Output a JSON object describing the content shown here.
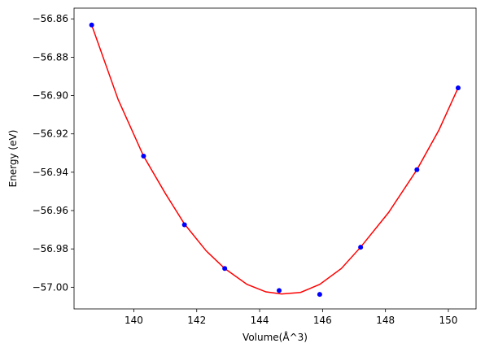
{
  "chart_data": {
    "type": "scatter",
    "xlabel": "Volume(Å^3)",
    "ylabel": "Energy (eV)",
    "xlim": [
      138.1,
      150.88
    ],
    "ylim": [
      -57.0113,
      -56.8544
    ],
    "x_ticks": [
      140,
      142,
      144,
      146,
      148,
      150
    ],
    "x_tick_labels": [
      "140",
      "142",
      "144",
      "146",
      "148",
      "150"
    ],
    "y_ticks": [
      -57.0,
      -56.98,
      -56.96,
      -56.94,
      -56.92,
      -56.9,
      -56.88,
      -56.86
    ],
    "y_tick_labels": [
      "−57.00",
      "−56.98",
      "−56.96",
      "−56.94",
      "−56.92",
      "−56.90",
      "−56.88",
      "−56.86"
    ],
    "grid": false,
    "series": [
      {
        "marker_color": "#0000ff",
        "points": [
          {
            "x": 138.66,
            "y": -56.8632
          },
          {
            "x": 140.31,
            "y": -56.9316
          },
          {
            "x": 141.61,
            "y": -56.9674
          },
          {
            "x": 142.89,
            "y": -56.9902
          },
          {
            "x": 144.62,
            "y": -57.0017
          },
          {
            "x": 145.91,
            "y": -57.0037
          },
          {
            "x": 147.21,
            "y": -56.9791
          },
          {
            "x": 149.0,
            "y": -56.9387
          },
          {
            "x": 150.31,
            "y": -56.896
          }
        ]
      },
      {
        "line_color": "#ff0000",
        "fit_curve": [
          {
            "x": 138.66,
            "y": -56.8632
          },
          {
            "x": 139.5,
            "y": -56.902
          },
          {
            "x": 140.31,
            "y": -56.9316
          },
          {
            "x": 141.0,
            "y": -56.951
          },
          {
            "x": 141.61,
            "y": -56.967
          },
          {
            "x": 142.3,
            "y": -56.981
          },
          {
            "x": 142.89,
            "y": -56.9902
          },
          {
            "x": 143.6,
            "y": -56.9985
          },
          {
            "x": 144.2,
            "y": -57.0024
          },
          {
            "x": 144.7,
            "y": -57.0035
          },
          {
            "x": 145.3,
            "y": -57.0027
          },
          {
            "x": 145.91,
            "y": -56.9985
          },
          {
            "x": 146.6,
            "y": -56.9902
          },
          {
            "x": 147.21,
            "y": -56.9791
          },
          {
            "x": 148.1,
            "y": -56.961
          },
          {
            "x": 149.0,
            "y": -56.9387
          },
          {
            "x": 149.7,
            "y": -56.918
          },
          {
            "x": 150.31,
            "y": -56.896
          }
        ]
      }
    ]
  }
}
